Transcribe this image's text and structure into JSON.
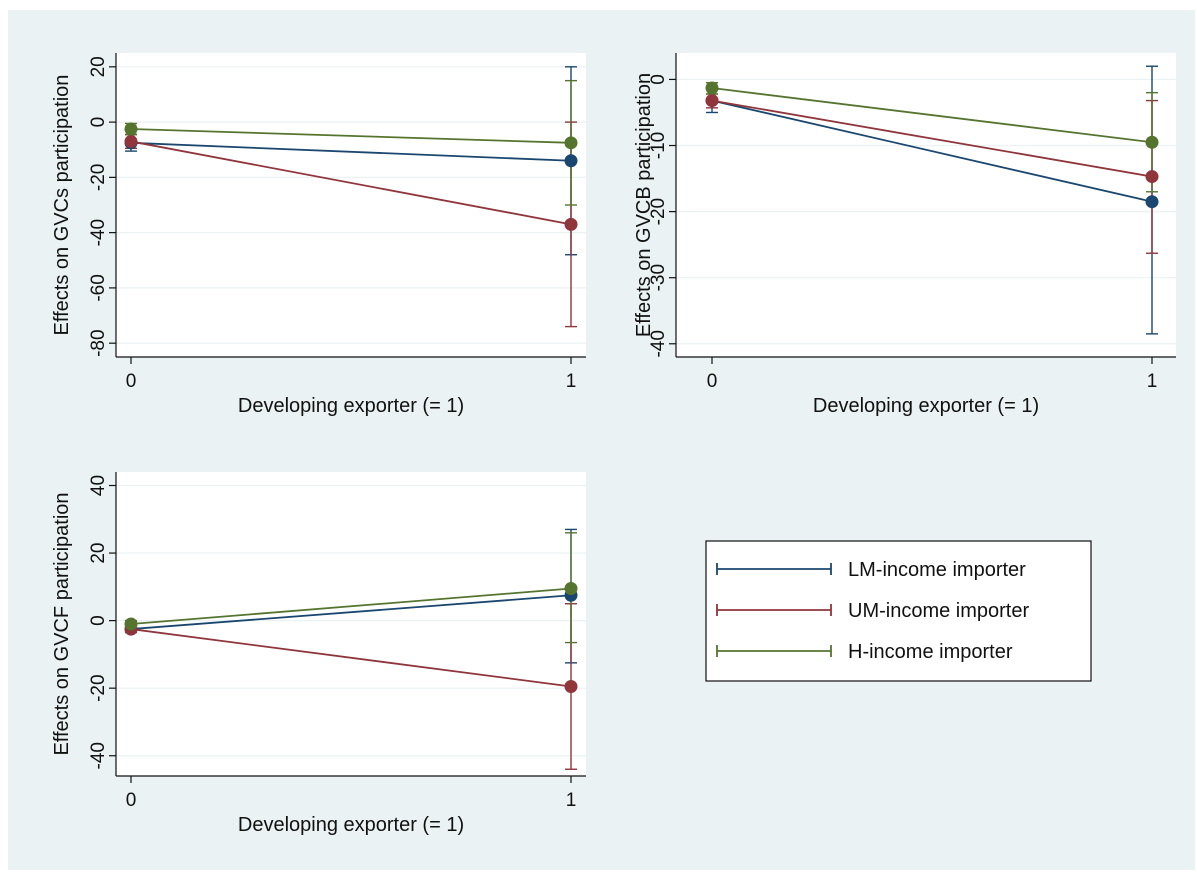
{
  "chart_data": [
    {
      "type": "line",
      "xlabel": "Developing exporter (= 1)",
      "ylabel": "Effects on GVCs participation",
      "x_ticks": [
        "0",
        "1"
      ],
      "y_ticks": [
        20,
        0,
        -20,
        -40,
        -60,
        -80
      ],
      "ylim": [
        -85,
        25
      ],
      "grid": true,
      "series": [
        {
          "name": "LM-income importer",
          "color": "#1a476f",
          "x": [
            0,
            1
          ],
          "y": [
            -7.5,
            -14
          ],
          "ci_low": [
            -10.5,
            -48
          ],
          "ci_high": [
            -4.5,
            20
          ]
        },
        {
          "name": "UM-income importer",
          "color": "#90353b",
          "x": [
            0,
            1
          ],
          "y": [
            -7,
            -37
          ],
          "ci_low": [
            -9.5,
            -74
          ],
          "ci_high": [
            -4.5,
            0
          ]
        },
        {
          "name": "H-income importer",
          "color": "#55752f",
          "x": [
            0,
            1
          ],
          "y": [
            -2.5,
            -7.5
          ],
          "ci_low": [
            -4.5,
            -30
          ],
          "ci_high": [
            -0.5,
            15
          ]
        }
      ]
    },
    {
      "type": "line",
      "xlabel": "Developing exporter (= 1)",
      "ylabel": "Effects on GVCB participation",
      "x_ticks": [
        "0",
        "1"
      ],
      "y_ticks": [
        0,
        -10,
        -20,
        -30,
        -40
      ],
      "ylim": [
        -42,
        4
      ],
      "grid": true,
      "series": [
        {
          "name": "LM-income importer",
          "color": "#1a476f",
          "x": [
            0,
            1
          ],
          "y": [
            -3.2,
            -18.5
          ],
          "ci_low": [
            -5,
            -38.5
          ],
          "ci_high": [
            -1.5,
            2
          ]
        },
        {
          "name": "UM-income importer",
          "color": "#90353b",
          "x": [
            0,
            1
          ],
          "y": [
            -3.2,
            -14.7
          ],
          "ci_low": [
            -4.3,
            -26.3
          ],
          "ci_high": [
            -2.2,
            -3.2
          ]
        },
        {
          "name": "H-income importer",
          "color": "#55752f",
          "x": [
            0,
            1
          ],
          "y": [
            -1.3,
            -9.5
          ],
          "ci_low": [
            -2.2,
            -17
          ],
          "ci_high": [
            -0.5,
            -2
          ]
        }
      ]
    },
    {
      "type": "line",
      "xlabel": "Developing exporter (= 1)",
      "ylabel": "Effects on GVCF participation",
      "x_ticks": [
        "0",
        "1"
      ],
      "y_ticks": [
        40,
        20,
        0,
        -20,
        -40
      ],
      "ylim": [
        -46,
        44
      ],
      "grid": true,
      "series": [
        {
          "name": "LM-income importer",
          "color": "#1a476f",
          "x": [
            0,
            1
          ],
          "y": [
            -2.5,
            7.5
          ],
          "ci_low": [
            -3.5,
            -12.5
          ],
          "ci_high": [
            -1.5,
            27
          ]
        },
        {
          "name": "UM-income importer",
          "color": "#90353b",
          "x": [
            0,
            1
          ],
          "y": [
            -2.5,
            -19.5
          ],
          "ci_low": [
            -3.5,
            -44
          ],
          "ci_high": [
            -1.5,
            5
          ]
        },
        {
          "name": "H-income importer",
          "color": "#55752f",
          "x": [
            0,
            1
          ],
          "y": [
            -1,
            9.5
          ],
          "ci_low": [
            -2,
            -6.5
          ],
          "ci_high": [
            0,
            26
          ]
        }
      ]
    }
  ],
  "legend": {
    "items": [
      {
        "label": "LM-income importer",
        "color": "#1a476f"
      },
      {
        "label": "UM-income importer",
        "color": "#90353b"
      },
      {
        "label": "H-income importer",
        "color": "#55752f"
      }
    ]
  },
  "colors": {
    "background": "#eaf2f3",
    "plot_area": "#ffffff",
    "grid": "#eaf2f3"
  }
}
